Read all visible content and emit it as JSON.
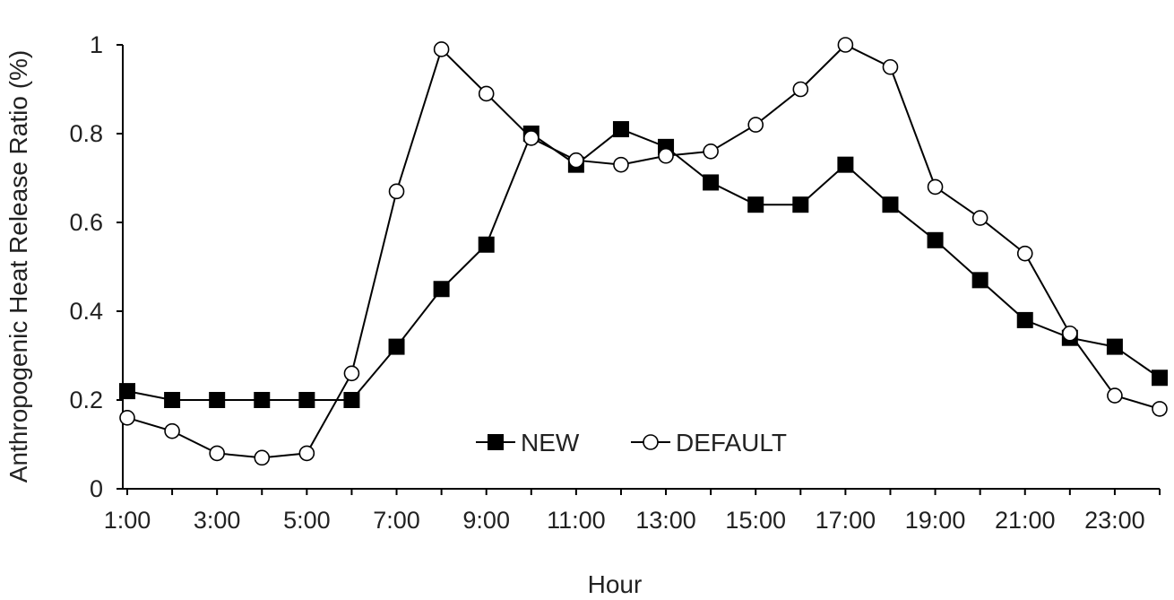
{
  "chart_data": {
    "type": "line",
    "xlabel": "Hour",
    "ylabel": "Anthropogenic Heat Release Ratio (%)",
    "x": [
      "1:00",
      "2:00",
      "3:00",
      "4:00",
      "5:00",
      "6:00",
      "7:00",
      "8:00",
      "9:00",
      "10:00",
      "11:00",
      "12:00",
      "13:00",
      "14:00",
      "15:00",
      "16:00",
      "17:00",
      "18:00",
      "19:00",
      "20:00",
      "21:00",
      "22:00",
      "23:00",
      "24:00"
    ],
    "x_tick_labels": [
      "1:00",
      "3:00",
      "5:00",
      "7:00",
      "9:00",
      "11:00",
      "13:00",
      "15:00",
      "17:00",
      "19:00",
      "21:00",
      "23:00"
    ],
    "ylim": [
      0,
      1
    ],
    "y_ticks": [
      "0",
      "0.2",
      "0.4",
      "0.6",
      "0.8",
      "1"
    ],
    "grid": false,
    "legend_position": "bottom-center",
    "series": [
      {
        "name": "NEW",
        "marker": "filled-square",
        "values": [
          0.22,
          0.2,
          0.2,
          0.2,
          0.2,
          0.2,
          0.32,
          0.45,
          0.55,
          0.8,
          0.73,
          0.81,
          0.77,
          0.69,
          0.64,
          0.64,
          0.73,
          0.64,
          0.56,
          0.47,
          0.38,
          0.34,
          0.32,
          0.25
        ]
      },
      {
        "name": "DEFAULT",
        "marker": "open-circle",
        "values": [
          0.16,
          0.13,
          0.08,
          0.07,
          0.08,
          0.26,
          0.67,
          0.99,
          0.89,
          0.79,
          0.74,
          0.73,
          0.75,
          0.76,
          0.82,
          0.9,
          1.0,
          0.95,
          0.68,
          0.61,
          0.53,
          0.35,
          0.21,
          0.18
        ]
      }
    ],
    "colors": {
      "line": "#000000",
      "marker_fill_new": "#000000",
      "marker_fill_default": "#ffffff"
    }
  }
}
